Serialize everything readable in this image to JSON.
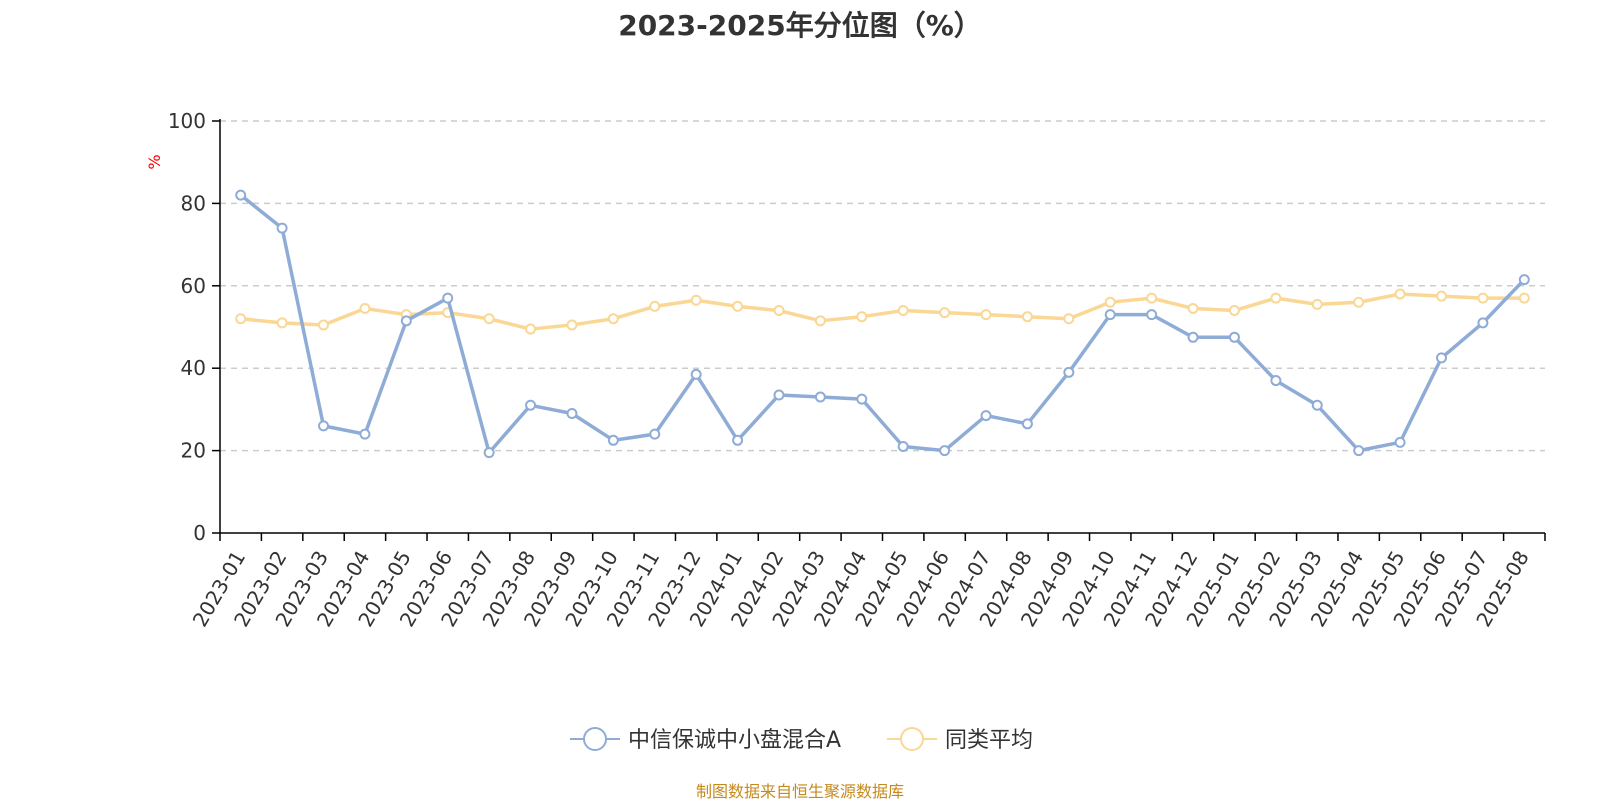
{
  "chart_data": {
    "type": "line",
    "title": "2023-2025年分位图（%）",
    "ylabel": "%",
    "ylim": [
      0,
      100
    ],
    "yticks": [
      0,
      20,
      40,
      60,
      80,
      100
    ],
    "grid": true,
    "legend_position": "bottom",
    "categories": [
      "2023-01",
      "2023-02",
      "2023-03",
      "2023-04",
      "2023-05",
      "2023-06",
      "2023-07",
      "2023-08",
      "2023-09",
      "2023-10",
      "2023-11",
      "2023-12",
      "2024-01",
      "2024-02",
      "2024-03",
      "2024-04",
      "2024-05",
      "2024-06",
      "2024-07",
      "2024-08",
      "2024-09",
      "2024-10",
      "2024-11",
      "2024-12",
      "2025-01",
      "2025-02",
      "2025-03",
      "2025-04",
      "2025-05",
      "2025-06",
      "2025-07",
      "2025-08"
    ],
    "series": [
      {
        "name": "中信保诚中小盘混合A",
        "color": "#8eacd6",
        "values": [
          82,
          74,
          26,
          24,
          51.5,
          57,
          19.5,
          31,
          29,
          22.5,
          24,
          38.5,
          22.5,
          33.5,
          33,
          32.5,
          21,
          20,
          28.5,
          26.5,
          39,
          53,
          53,
          47.5,
          47.5,
          37,
          31,
          20,
          22,
          42.5,
          51,
          61.5
        ]
      },
      {
        "name": "同类平均",
        "color": "#fad794",
        "values": [
          52,
          51,
          50.5,
          54.5,
          53,
          53.5,
          52,
          49.5,
          50.5,
          52,
          55,
          56.5,
          55,
          54,
          51.5,
          52.5,
          54,
          53.5,
          53,
          52.5,
          52,
          56,
          57,
          54.5,
          54,
          57,
          55.5,
          56,
          58,
          57.5,
          57,
          57
        ]
      }
    ]
  },
  "source_note": "制图数据来自恒生聚源数据库",
  "colors": {
    "axis": "#000000",
    "grid": "#cccccc",
    "ylabel": "#ff0000",
    "source": "#c48a1e",
    "text": "#333333"
  }
}
